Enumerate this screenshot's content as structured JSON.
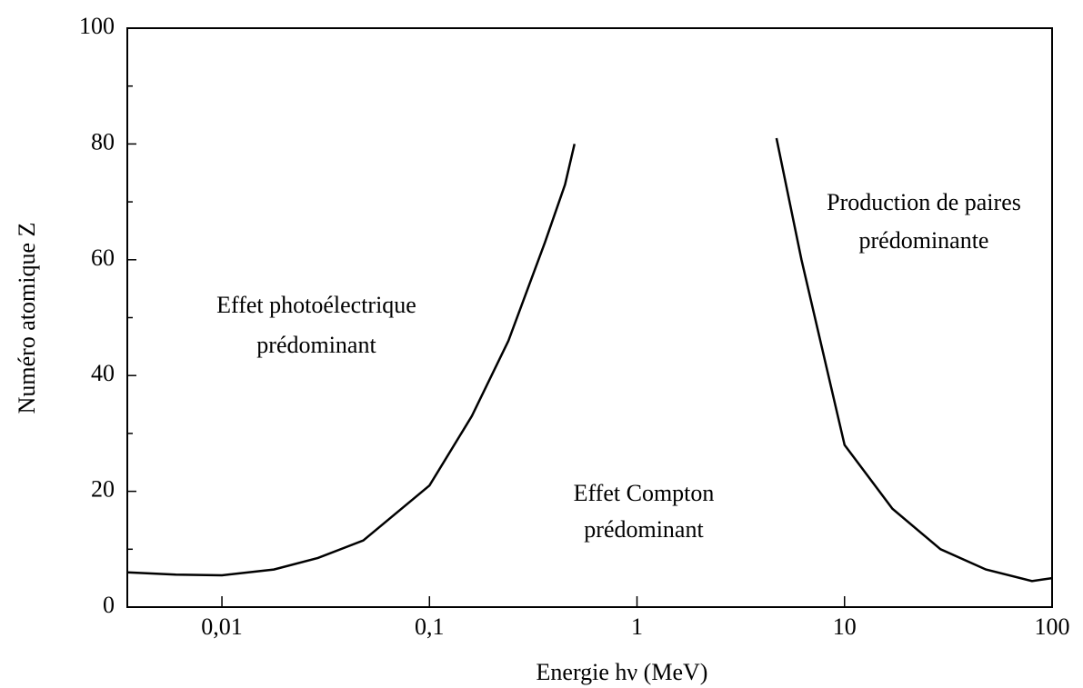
{
  "chart_data": {
    "type": "line",
    "x_label": "Energie hν (MeV)",
    "y_label": "Numéro atomique Z",
    "log_x": true,
    "xlim": [
      0.0035,
      100
    ],
    "ylim": [
      0,
      100
    ],
    "xticks": [
      {
        "value": 0.01,
        "label": "0,01"
      },
      {
        "value": 0.1,
        "label": "0,1"
      },
      1,
      10,
      100
    ],
    "yticks": [
      0,
      20,
      40,
      60,
      80,
      100
    ],
    "y_minor_ticks": [
      10,
      30,
      50,
      70,
      90
    ],
    "series": [
      {
        "color": "#000000",
        "x": [
          0.0035,
          0.006,
          0.01,
          0.0178,
          0.029,
          0.048,
          0.1,
          0.16,
          0.24,
          0.36,
          0.45,
          0.5
        ],
        "values": [
          6,
          5.6,
          5.5,
          6.5,
          8.5,
          11.5,
          21,
          33,
          46,
          63,
          73,
          80
        ]
      },
      {
        "color": "#000000",
        "x": [
          4.7,
          6.2,
          10,
          17,
          29,
          48,
          80,
          100
        ],
        "values": [
          81,
          60,
          28,
          17,
          10,
          6.5,
          4.5,
          5
        ]
      }
    ],
    "annotations": [
      {
        "text": [
          "Effet photoélectrique",
          "prédominant"
        ]
      },
      {
        "text": [
          "Effet Compton",
          "prédominant"
        ]
      },
      {
        "text": [
          "Production de paires",
          "prédominante"
        ]
      }
    ]
  }
}
